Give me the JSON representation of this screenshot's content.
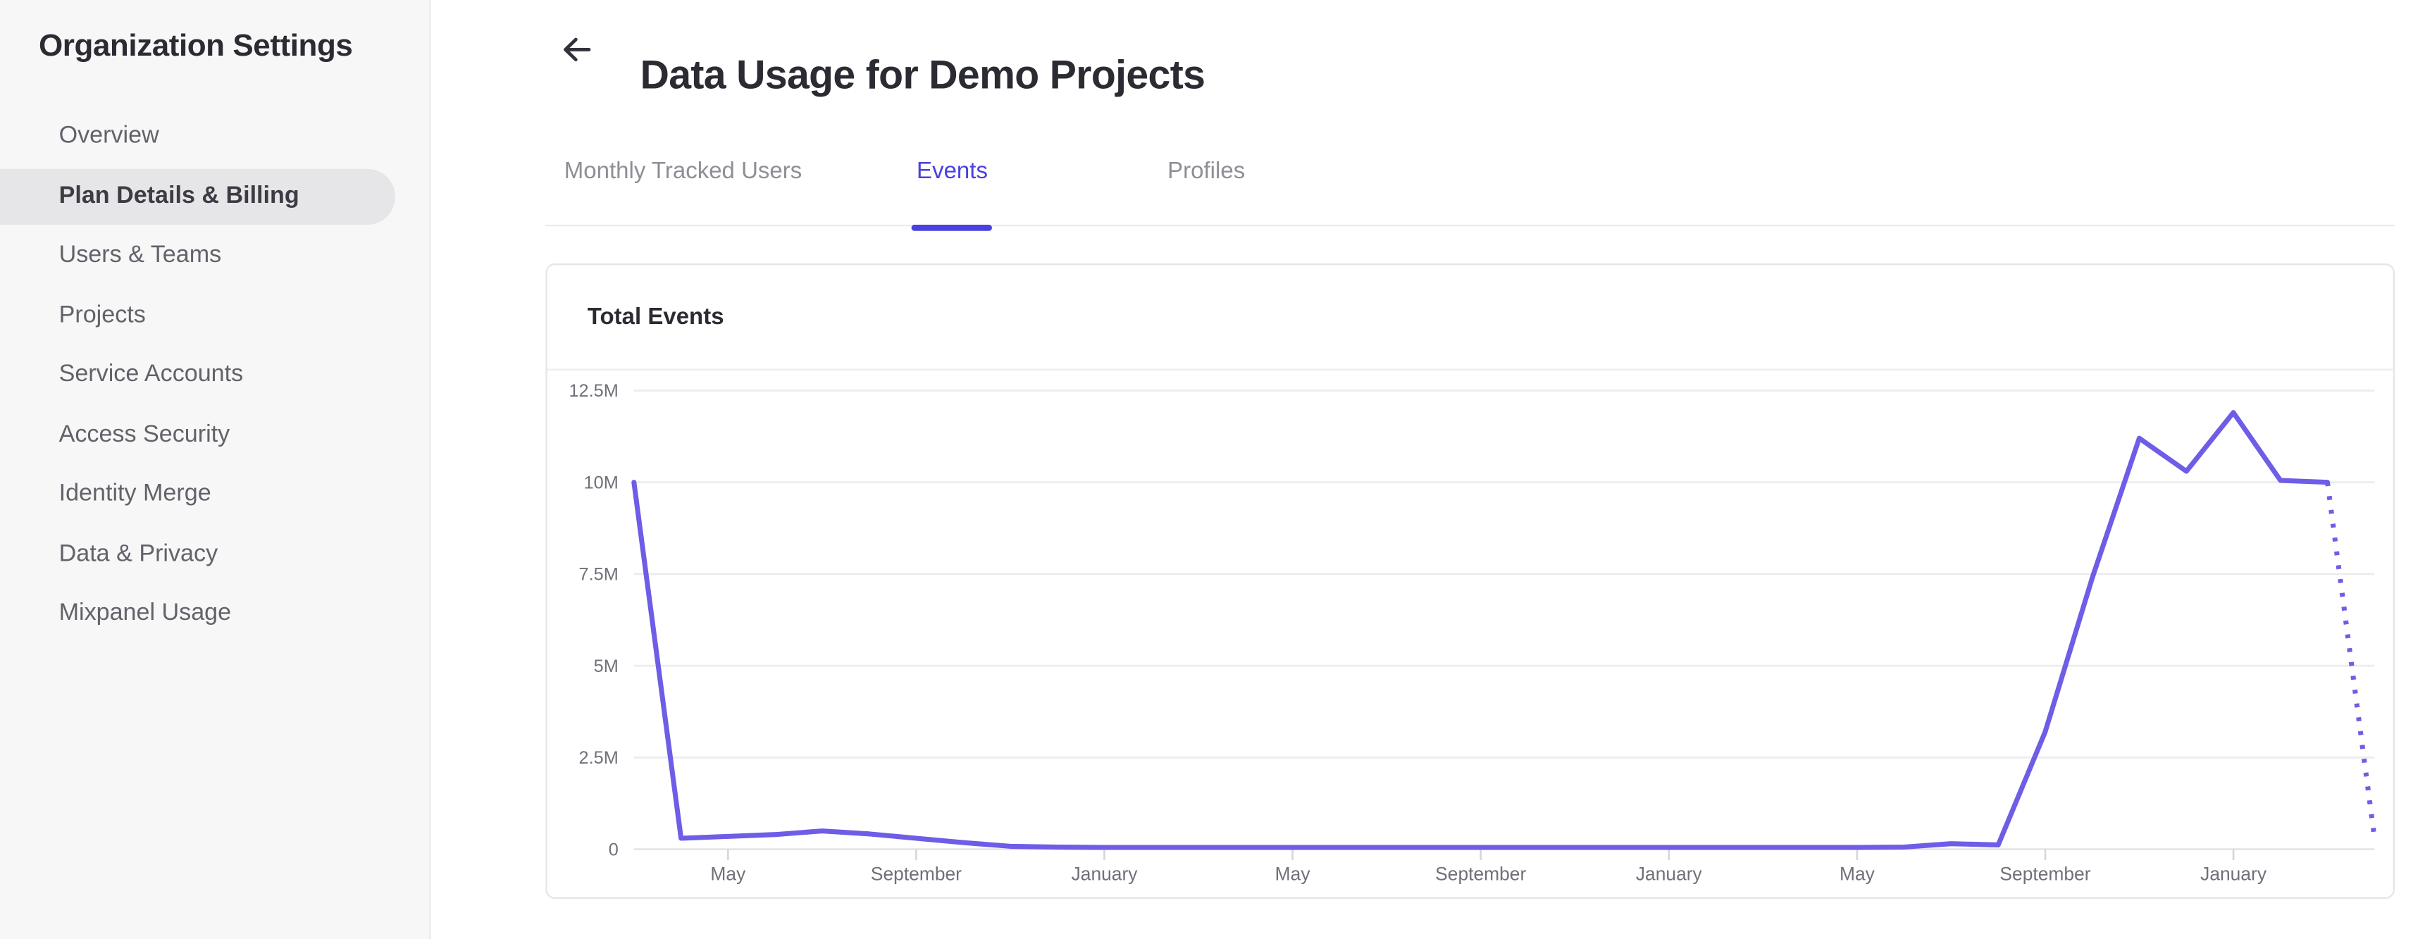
{
  "sidebar": {
    "title": "Organization Settings",
    "items": [
      {
        "label": "Overview",
        "active": false
      },
      {
        "label": "Plan Details & Billing",
        "active": true
      },
      {
        "label": "Users & Teams",
        "active": false
      },
      {
        "label": "Projects",
        "active": false
      },
      {
        "label": "Service Accounts",
        "active": false
      },
      {
        "label": "Access Security",
        "active": false
      },
      {
        "label": "Identity Merge",
        "active": false
      },
      {
        "label": "Data & Privacy",
        "active": false
      },
      {
        "label": "Mixpanel Usage",
        "active": false
      }
    ]
  },
  "header": {
    "title": "Data Usage for Demo Projects"
  },
  "tabs": [
    {
      "label": "Monthly Tracked Users",
      "active": false
    },
    {
      "label": "Events",
      "active": true
    },
    {
      "label": "Profiles",
      "active": false
    }
  ],
  "card": {
    "title": "Total Events"
  },
  "colors": {
    "accent": "#4b40e0",
    "chart_line": "#6e5de6",
    "grid_line": "#ececee",
    "zero_line": "#e4e4e8",
    "axis_tick": "#d6d6db",
    "axis_label": "#70707a",
    "sidebar_bg": "#f7f7f7",
    "sidebar_pill": "#e6e6e8",
    "text_dark": "#2b2c33",
    "text_muted": "#62626b"
  },
  "chart_data": {
    "type": "line",
    "title": "Total Events",
    "series_name": "Total Events",
    "ylim_millions": [
      0,
      12.5
    ],
    "grid": "horizontal",
    "legend": false,
    "y_ticks": [
      {
        "label": "12.5M",
        "value_millions": 12.5
      },
      {
        "label": "10M",
        "value_millions": 10
      },
      {
        "label": "7.5M",
        "value_millions": 7.5
      },
      {
        "label": "5M",
        "value_millions": 5
      },
      {
        "label": "2.5M",
        "value_millions": 2.5
      },
      {
        "label": "0",
        "value_millions": 0
      }
    ],
    "x_ticks": [
      {
        "index": 2,
        "label": "May"
      },
      {
        "index": 6,
        "label": "September"
      },
      {
        "index": 10,
        "label": "January"
      },
      {
        "index": 14,
        "label": "May"
      },
      {
        "index": 18,
        "label": "September"
      },
      {
        "index": 22,
        "label": "January"
      },
      {
        "index": 26,
        "label": "May"
      },
      {
        "index": 30,
        "label": "September"
      },
      {
        "index": 34,
        "label": "January"
      }
    ],
    "values_millions": [
      10,
      0.3,
      0.35,
      0.4,
      0.5,
      0.42,
      0.3,
      0.18,
      0.08,
      0.06,
      0.05,
      0.05,
      0.05,
      0.05,
      0.05,
      0.05,
      0.05,
      0.05,
      0.05,
      0.05,
      0.05,
      0.05,
      0.05,
      0.05,
      0.05,
      0.05,
      0.05,
      0.06,
      0.15,
      0.12,
      3.2,
      7.4,
      11.2,
      10.3,
      11.9,
      10.05,
      10,
      0.3
    ],
    "dashed_from_index": 36
  }
}
